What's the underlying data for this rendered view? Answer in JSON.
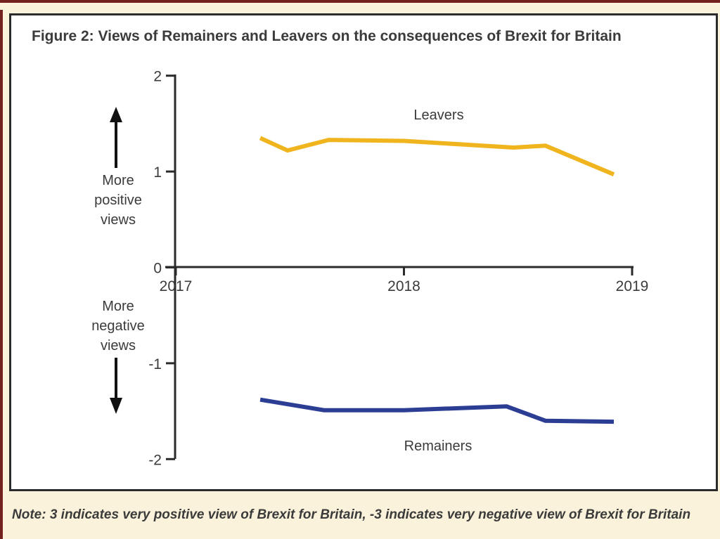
{
  "page": {
    "title": "Figure 2: Views of Remainers and Leavers on the consequences of Brexit for Britain",
    "note": "Note: 3 indicates very positive view of Brexit for Britain, -3 indicates very negative view of Brexit for Britain"
  },
  "annotations": {
    "more_positive": "More positive views",
    "more_negative": "More negative views"
  },
  "colors": {
    "background": "#faf2da",
    "edge_accent": "#72211f",
    "box_border": "#2b2b2b",
    "axis": "#2b2b2b",
    "text": "#3b3b3b",
    "leavers": "#f0b41e",
    "remainers": "#2c3e94"
  },
  "chart_data": {
    "type": "line",
    "title": "Figure 2: Views of Remainers and Leavers on the consequences of Brexit for Britain",
    "xlabel": "",
    "ylabel": "",
    "xlim": [
      2017,
      2019.05
    ],
    "ylim": [
      -2,
      2
    ],
    "xticks": [
      2017,
      2018,
      2019
    ],
    "yticks": [
      2,
      1,
      0,
      -1,
      -2
    ],
    "grid": false,
    "legend_position": "inline-labels",
    "series": [
      {
        "name": "Leavers",
        "color": "#f0b41e",
        "x": [
          2017.37,
          2017.49,
          2017.67,
          2018.0,
          2018.48,
          2018.62,
          2018.92
        ],
        "y": [
          1.35,
          1.22,
          1.33,
          1.32,
          1.25,
          1.27,
          0.97
        ]
      },
      {
        "name": "Remainers",
        "color": "#2c3e94",
        "x": [
          2017.37,
          2017.65,
          2018.0,
          2018.45,
          2018.62,
          2018.92
        ],
        "y": [
          -1.38,
          -1.49,
          -1.49,
          -1.45,
          -1.6,
          -1.61
        ]
      }
    ]
  }
}
